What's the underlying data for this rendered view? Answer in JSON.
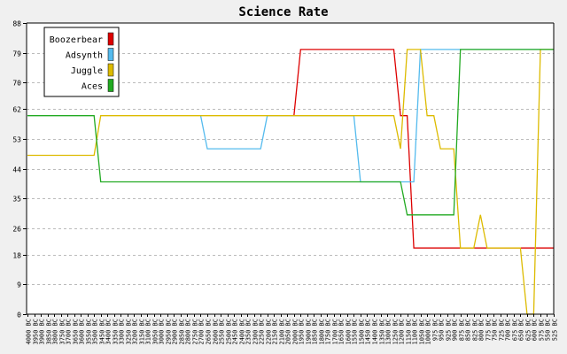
{
  "chart_data": {
    "type": "line",
    "title": "Science Rate",
    "xlabel": "",
    "ylabel": "",
    "ylim": [
      0,
      88
    ],
    "yticks": [
      0,
      9,
      18,
      26,
      35,
      44,
      53,
      62,
      70,
      79,
      88
    ],
    "grid": true,
    "legend_position": "top-left",
    "categories": [
      "4000 BC",
      "3950 BC",
      "3900 BC",
      "3850 BC",
      "3800 BC",
      "3750 BC",
      "3700 BC",
      "3650 BC",
      "3600 BC",
      "3550 BC",
      "3500 BC",
      "3450 BC",
      "3400 BC",
      "3350 BC",
      "3300 BC",
      "3250 BC",
      "3200 BC",
      "3150 BC",
      "3100 BC",
      "3050 BC",
      "3000 BC",
      "2950 BC",
      "2900 BC",
      "2850 BC",
      "2800 BC",
      "2750 BC",
      "2700 BC",
      "2650 BC",
      "2600 BC",
      "2550 BC",
      "2500 BC",
      "2450 BC",
      "2400 BC",
      "2350 BC",
      "2300 BC",
      "2250 BC",
      "2200 BC",
      "2150 BC",
      "2100 BC",
      "2050 BC",
      "2000 BC",
      "1950 BC",
      "1900 BC",
      "1850 BC",
      "1800 BC",
      "1750 BC",
      "1700 BC",
      "1650 BC",
      "1600 BC",
      "1550 BC",
      "1500 BC",
      "1450 BC",
      "1400 BC",
      "1350 BC",
      "1300 BC",
      "1250 BC",
      "1200 BC",
      "1150 BC",
      "1100 BC",
      "1050 BC",
      "1000 BC",
      "975 BC",
      "950 BC",
      "925 BC",
      "900 BC",
      "875 BC",
      "850 BC",
      "825 BC",
      "800 BC",
      "775 BC",
      "750 BC",
      "725 BC",
      "700 BC",
      "675 BC",
      "650 BC",
      "625 BC",
      "600 BC",
      "575 BC",
      "550 BC",
      "525 BC"
    ],
    "series": [
      {
        "name": "Boozerbear",
        "color": "#dd0000",
        "values": [
          null,
          null,
          null,
          null,
          null,
          null,
          null,
          null,
          null,
          null,
          null,
          null,
          null,
          null,
          null,
          null,
          null,
          null,
          null,
          null,
          null,
          null,
          null,
          null,
          null,
          null,
          null,
          null,
          null,
          null,
          null,
          null,
          null,
          null,
          null,
          null,
          null,
          null,
          null,
          null,
          60,
          80,
          80,
          80,
          80,
          80,
          80,
          80,
          80,
          80,
          80,
          80,
          80,
          80,
          80,
          80,
          60,
          60,
          20,
          20,
          20,
          20,
          20,
          20,
          20,
          20,
          20,
          20,
          20,
          20,
          20,
          20,
          20,
          20,
          20,
          20,
          20,
          20,
          20,
          20
        ]
      },
      {
        "name": "Adsynth",
        "color": "#55bbee",
        "values": [
          null,
          null,
          null,
          null,
          null,
          null,
          null,
          null,
          null,
          null,
          null,
          null,
          null,
          null,
          null,
          null,
          null,
          null,
          null,
          null,
          null,
          null,
          null,
          null,
          null,
          null,
          60,
          50,
          50,
          50,
          50,
          50,
          50,
          50,
          50,
          50,
          60,
          60,
          60,
          60,
          60,
          60,
          60,
          60,
          60,
          60,
          60,
          60,
          60,
          60,
          40,
          40,
          40,
          40,
          40,
          40,
          40,
          40,
          40,
          80,
          80,
          80,
          80,
          80,
          80,
          80,
          80,
          80,
          80,
          80,
          80,
          80,
          80,
          80,
          80,
          80,
          80,
          80,
          80,
          80
        ]
      },
      {
        "name": "Juggle",
        "color": "#ddbb00",
        "values": [
          48,
          48,
          48,
          48,
          48,
          48,
          48,
          48,
          48,
          48,
          48,
          60,
          60,
          60,
          60,
          60,
          60,
          60,
          60,
          60,
          60,
          60,
          60,
          60,
          60,
          60,
          60,
          60,
          60,
          60,
          60,
          60,
          60,
          60,
          60,
          60,
          60,
          60,
          60,
          60,
          60,
          60,
          60,
          60,
          60,
          60,
          60,
          60,
          60,
          60,
          60,
          60,
          60,
          60,
          60,
          60,
          50,
          80,
          80,
          80,
          60,
          60,
          50,
          50,
          50,
          20,
          20,
          20,
          30,
          20,
          20,
          20,
          20,
          20,
          20,
          0,
          0,
          80,
          80,
          80
        ]
      },
      {
        "name": "Aces",
        "color": "#22aa22",
        "values": [
          60,
          60,
          60,
          60,
          60,
          60,
          60,
          60,
          60,
          60,
          60,
          40,
          40,
          40,
          40,
          40,
          40,
          40,
          40,
          40,
          40,
          40,
          40,
          40,
          40,
          40,
          40,
          40,
          40,
          40,
          40,
          40,
          40,
          40,
          40,
          40,
          40,
          40,
          40,
          40,
          40,
          40,
          40,
          40,
          40,
          40,
          40,
          40,
          40,
          40,
          40,
          40,
          40,
          40,
          40,
          40,
          40,
          30,
          30,
          30,
          30,
          30,
          30,
          30,
          30,
          80,
          80,
          80,
          80,
          80,
          80,
          80,
          80,
          80,
          80,
          80,
          80,
          80,
          80,
          80
        ]
      }
    ]
  }
}
